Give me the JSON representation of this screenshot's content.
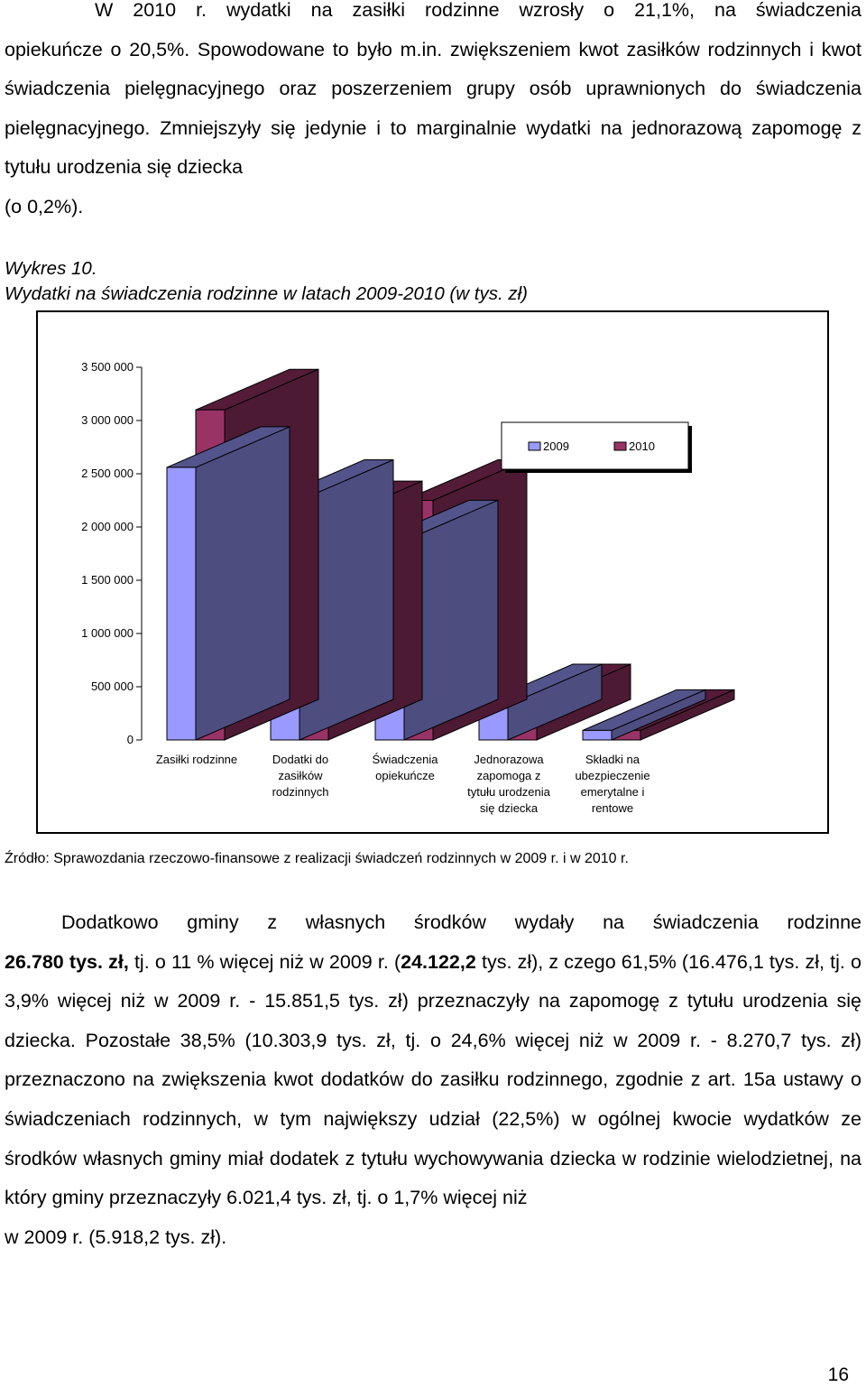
{
  "intro_paragraph": {
    "line1": "W 2010 r. wydatki na zasiłki rodzinne wzrosły o 21,1%, na świadczenia",
    "rest": "opiekuńcze o 20,5%. Spowodowane to było m.in. zwiększeniem kwot zasiłków rodzinnych i kwot świadczenia pielęgnacyjnego oraz poszerzeniem grupy osób uprawnionych do świadczenia pielęgnacyjnego. Zmniejszyły się jedynie i to marginalnie wydatki na jednorazową zapomogę z tytułu urodzenia się dziecka",
    "last": "(o 0,2%)."
  },
  "figure": {
    "number": "Wykres 10.",
    "title": "Wydatki na świadczenia rodzinne w latach 2009-2010 (w tys. zł)",
    "source": "Źródło: Sprawozdania rzeczowo-finansowe z realizacji świadczeń rodzinnych w 2009 r. i w 2010 r."
  },
  "chart_data": {
    "type": "bar",
    "style": "3d-clustered",
    "categories": [
      "Zasiłki rodzinne",
      "Dodatki do zasiłków rodzinnych",
      "Świadczenia opiekuńcze",
      "Jednorazowa zapomoga z tytułu urodzenia się dziecka",
      "Składki na ubezpieczenie emerytalne i rentowe"
    ],
    "category_lines": [
      [
        "Zasiłki rodzinne"
      ],
      [
        "Dodatki do",
        "zasiłków",
        "rodzinnych"
      ],
      [
        "Świadczenia",
        "opiekuńcze"
      ],
      [
        "Jednorazowa",
        "zapomoga z",
        "tytułu urodzenia",
        "się dziecka"
      ],
      [
        "Składki na",
        "ubezpieczenie",
        "emerytalne i",
        "rentowe"
      ]
    ],
    "series": [
      {
        "name": "2009",
        "color": "#9999ff",
        "values": [
          2560000,
          2250000,
          1870000,
          330000,
          90000
        ]
      },
      {
        "name": "2010",
        "color": "#993366",
        "values": [
          3100000,
          2050000,
          2250000,
          330000,
          90000
        ]
      }
    ],
    "ylim": [
      0,
      3500000
    ],
    "yticks": [
      0,
      500000,
      1000000,
      1500000,
      2000000,
      2500000,
      3000000,
      3500000
    ],
    "ytick_labels": [
      "0",
      "500 000",
      "1 000 000",
      "1 500 000",
      "2 000 000",
      "2 500 000",
      "3 000 000",
      "3 500 000"
    ],
    "legend_position": "top-right",
    "grid": false
  },
  "body_paragraph": {
    "line1": "Dodatkowo gminy z własnych środków wydały na świadczenia rodzinne",
    "line2_a": "26.780 tys. zł,",
    "line2_b": " tj. o 11 % więcej niż w 2009 r. (",
    "line2_c": "24.122,2",
    "line2_d": " tys. zł), z czego 61,5% (16.476,1 tys. zł, tj. o 3,9% więcej niż w 2009 r. - 15.851,5 tys. zł) przeznaczyły na zapomogę z tytułu urodzenia się dziecka. Pozostałe 38,5% (10.303,9 tys. zł, tj. o 24,6% więcej niż w 2009 r. - 8.270,7 tys. zł) przeznaczono na zwiększenia kwot dodatków do zasiłku rodzinnego, zgodnie z art. 15a ustawy o świadczeniach rodzinnych, w tym największy udział (22,5%) w ogólnej kwocie wydatków ze środków własnych gminy miał dodatek z tytułu wychowywania dziecka w rodzinie wielodzietnej, na który gminy przeznaczyły 6.021,4 tys. zł, tj. o 1,7% więcej niż",
    "last": "w 2009 r. (5.918,2 tys. zł)."
  },
  "page_number": "16"
}
